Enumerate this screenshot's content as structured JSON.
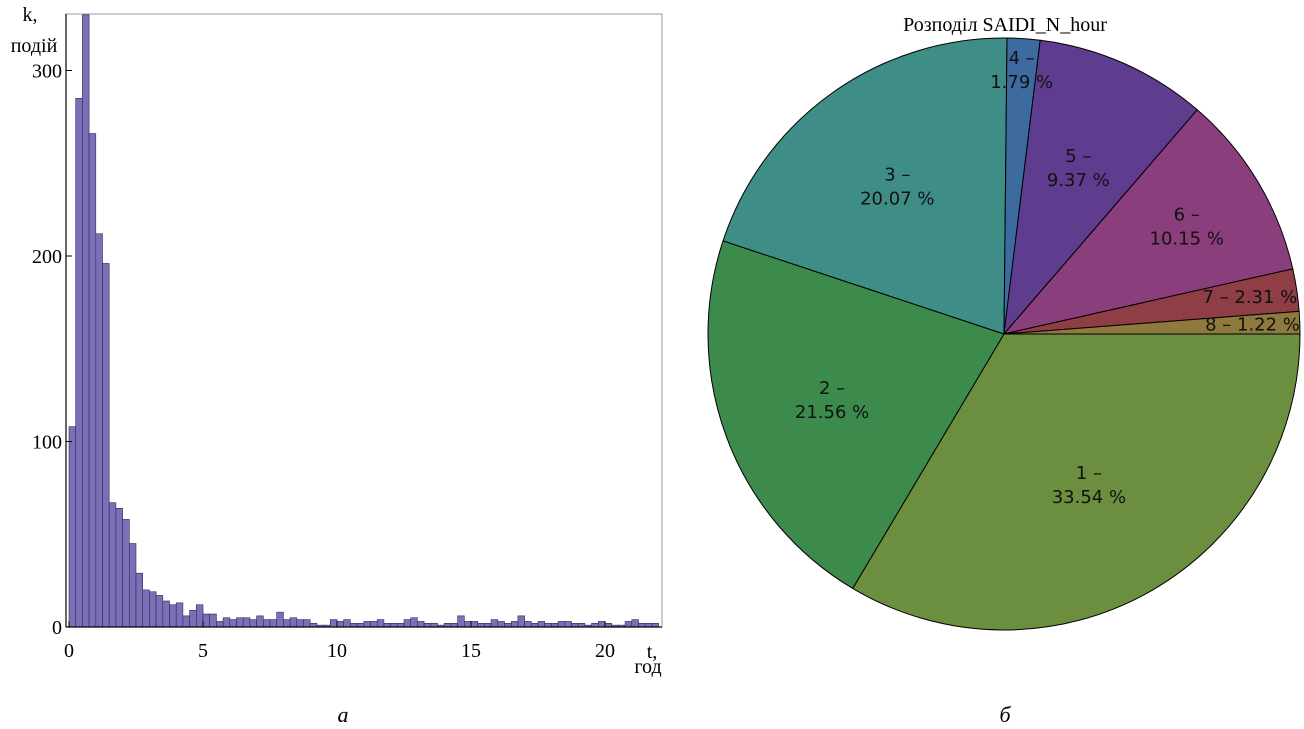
{
  "captions": {
    "left": "а",
    "right": "б"
  },
  "chart_data": [
    {
      "type": "bar",
      "ylabel": "k,",
      "ylabel2": "подій",
      "xlabel": "t,",
      "xlabel2": "год",
      "xlim": [
        0,
        22
      ],
      "ylim": [
        0,
        330
      ],
      "xticks": [
        0,
        5,
        10,
        15,
        20
      ],
      "yticks": [
        0,
        100,
        200,
        300
      ],
      "bin_width": 0.25,
      "values": [
        108,
        285,
        330,
        266,
        212,
        196,
        67,
        64,
        58,
        45,
        29,
        20,
        19,
        17,
        14,
        12,
        13,
        6,
        9,
        12,
        7,
        7,
        3,
        5,
        4,
        5,
        5,
        4,
        6,
        4,
        4,
        8,
        4,
        5,
        4,
        4,
        2,
        1,
        1,
        4,
        3,
        4,
        2,
        2,
        3,
        3,
        4,
        2,
        2,
        2,
        4,
        5,
        3,
        2,
        2,
        1,
        2,
        2,
        6,
        3,
        3,
        2,
        2,
        4,
        3,
        2,
        3,
        6,
        3,
        2,
        3,
        2,
        2,
        3,
        3,
        2,
        2,
        1,
        2,
        3,
        2,
        1,
        1,
        3,
        4,
        2,
        2,
        2,
        2
      ]
    },
    {
      "type": "pie",
      "title": "Розподіл SAIDI_N_hour",
      "slices": [
        {
          "label": "1 –",
          "value": 33.54,
          "pct_text": "33.54 %",
          "color": "#6b8e3f"
        },
        {
          "label": "2 –",
          "value": 21.56,
          "pct_text": "21.56 %",
          "color": "#3d8b4c"
        },
        {
          "label": "3 –",
          "value": 20.07,
          "pct_text": "20.07 %",
          "color": "#3e8d86"
        },
        {
          "label": "4 –",
          "value": 1.79,
          "pct_text": "1.79 %",
          "color": "#3d6ba0"
        },
        {
          "label": "5 –",
          "value": 9.37,
          "pct_text": "9.37 %",
          "color": "#5e3d8e"
        },
        {
          "label": "6 –",
          "value": 10.15,
          "pct_text": "10.15 %",
          "color": "#8b3e7c"
        },
        {
          "label": "7 –",
          "value": 2.31,
          "pct_text": "2.31 %",
          "color": "#8e3e44"
        },
        {
          "label": "8 –",
          "value": 1.22,
          "pct_text": "1.22 %",
          "color": "#8e7a3e"
        }
      ]
    }
  ]
}
